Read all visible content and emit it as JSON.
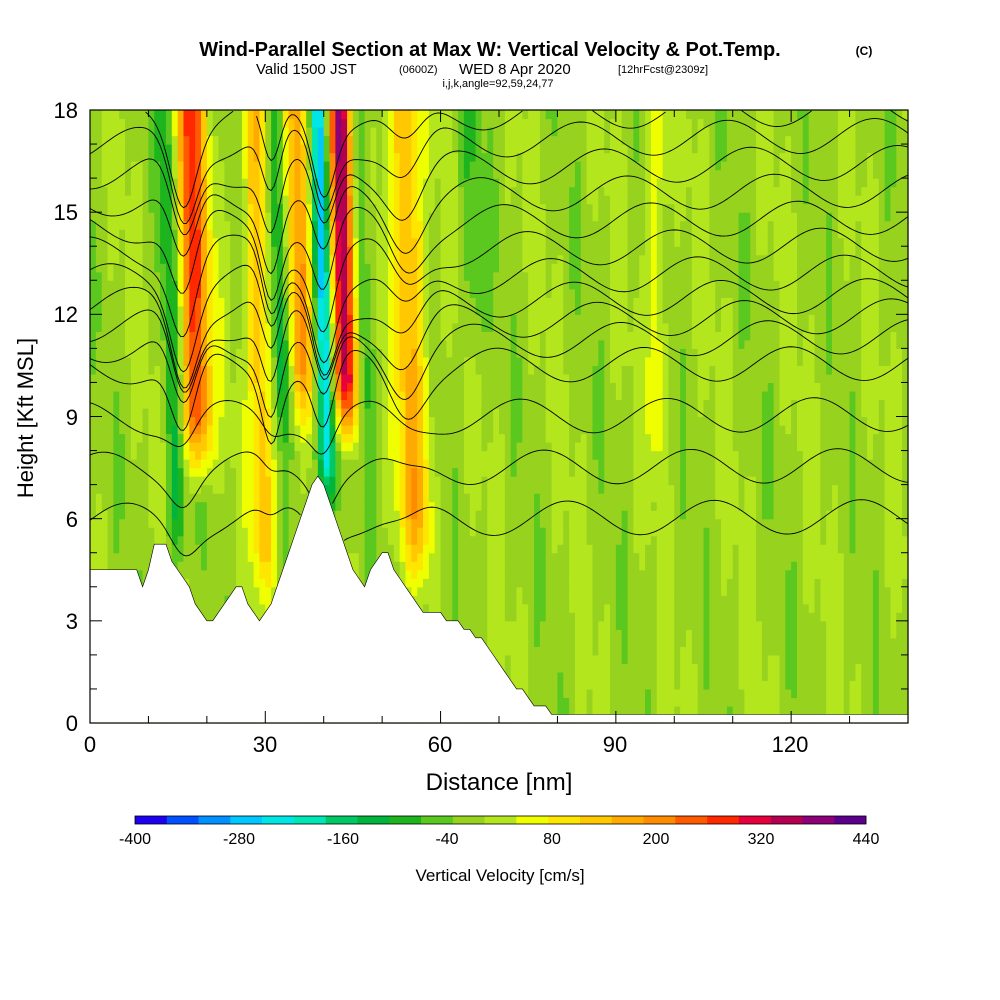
{
  "chart_data": {
    "type": "heatmap",
    "title": {
      "main": "Wind-Parallel Section at Max W: Vertical Velocity & Pot.Temp.",
      "copyright": "(C)",
      "valid_prefix": "Valid 1500 JST",
      "valid_utc": "(0600Z)",
      "valid_date": "WED 8 Apr 2020",
      "forecast": "[12hrFcst@2309z]",
      "indices": "i,j,k,angle=92,59,24,77"
    },
    "xlabel": "Distance [nm]",
    "ylabel": "Height [Kft MSL]",
    "xlim": [
      0,
      140
    ],
    "ylim": [
      0,
      18
    ],
    "x_ticks": [
      "0",
      "30",
      "60",
      "90",
      "120"
    ],
    "y_ticks": [
      "0",
      "3",
      "6",
      "9",
      "12",
      "15",
      "18"
    ],
    "colorbar": {
      "label": "Vertical Velocity [cm/s]",
      "min": -400,
      "max": 440,
      "step": 40,
      "tick_labels": [
        "-400",
        "-280",
        "-160",
        "-40",
        "80",
        "200",
        "320",
        "440"
      ],
      "colors": [
        "#1e00f0",
        "#0050ff",
        "#0090ff",
        "#00c8ff",
        "#00e6e6",
        "#00e6b4",
        "#00c864",
        "#00b43c",
        "#1eb41e",
        "#5ac81e",
        "#96d21e",
        "#b4e61e",
        "#f0ff00",
        "#ffe600",
        "#ffc800",
        "#ffaa00",
        "#ff8c00",
        "#ff5a00",
        "#ff2800",
        "#e6003c",
        "#b40050",
        "#8c0078",
        "#5a008c"
      ]
    },
    "terrain_height_kft": [
      [
        0,
        4.5
      ],
      [
        5,
        4.5
      ],
      [
        8,
        4.5
      ],
      [
        9,
        4.0
      ],
      [
        10,
        4.5
      ],
      [
        11,
        5.2
      ],
      [
        13,
        5.2
      ],
      [
        14,
        4.8
      ],
      [
        15,
        4.5
      ],
      [
        16,
        4.3
      ],
      [
        17,
        4.0
      ],
      [
        18,
        3.5
      ],
      [
        19,
        3.2
      ],
      [
        20,
        3.0
      ],
      [
        21,
        3.0
      ],
      [
        22,
        3.3
      ],
      [
        23,
        3.6
      ],
      [
        24,
        3.8
      ],
      [
        25,
        3.9
      ],
      [
        26,
        3.9
      ],
      [
        27,
        3.5
      ],
      [
        28,
        3.2
      ],
      [
        29,
        3.0
      ],
      [
        30,
        3.2
      ],
      [
        31,
        3.6
      ],
      [
        32,
        4.0
      ],
      [
        33,
        4.5
      ],
      [
        34,
        5.0
      ],
      [
        35,
        5.5
      ],
      [
        36,
        6.0
      ],
      [
        37,
        6.5
      ],
      [
        38,
        7.0
      ],
      [
        39,
        7.2
      ],
      [
        40,
        7.0
      ],
      [
        41,
        6.5
      ],
      [
        42,
        6.0
      ],
      [
        43,
        5.4
      ],
      [
        44,
        5.0
      ],
      [
        45,
        4.5
      ],
      [
        46,
        4.2
      ],
      [
        47,
        4.0
      ],
      [
        48,
        4.4
      ],
      [
        49,
        4.8
      ],
      [
        50,
        5.1
      ],
      [
        51,
        5.0
      ],
      [
        52,
        4.6
      ],
      [
        53,
        4.3
      ],
      [
        54,
        4.1
      ],
      [
        55,
        3.8
      ],
      [
        56,
        3.5
      ],
      [
        57,
        3.3
      ],
      [
        58,
        3.2
      ],
      [
        60,
        3.2
      ],
      [
        62,
        3.0
      ],
      [
        64,
        2.8
      ],
      [
        66,
        2.6
      ],
      [
        68,
        2.3
      ],
      [
        70,
        1.8
      ],
      [
        72,
        1.3
      ],
      [
        74,
        0.9
      ],
      [
        76,
        0.6
      ],
      [
        78,
        0.4
      ],
      [
        80,
        0.3
      ],
      [
        82,
        0.3
      ],
      [
        140,
        0.3
      ]
    ],
    "updraft_cores": [
      {
        "x": 18.5,
        "y_bottom": 8.0,
        "width": 2.6,
        "tilt_per_kft": 0.25,
        "peak": 300
      },
      {
        "x": 44.0,
        "y_bottom": 9.0,
        "width": 2.2,
        "tilt_per_kft": 0.25,
        "peak": 420
      },
      {
        "x": 30.0,
        "y_bottom": 4.5,
        "width": 2.0,
        "tilt_per_kft": 0.25,
        "peak": 170
      },
      {
        "x": 56.0,
        "y_bottom": 5.0,
        "width": 2.8,
        "tilt_per_kft": 0.3,
        "peak": 180
      },
      {
        "x": 36.5,
        "y_bottom": 9.5,
        "width": 2.0,
        "tilt_per_kft": 0.25,
        "peak": 200
      },
      {
        "x": 97.0,
        "y_bottom": 8.0,
        "width": 1.5,
        "tilt_per_kft": 0.0,
        "peak": 90
      }
    ],
    "downdraft_cores": [
      {
        "x": 40.8,
        "y_bottom": 6.8,
        "width": 1.5,
        "tilt_per_kft": 0.25,
        "peak": -300
      },
      {
        "x": 15.0,
        "y_bottom": 5.0,
        "width": 1.6,
        "tilt_per_kft": 0.25,
        "peak": -120
      },
      {
        "x": 33.0,
        "y_bottom": 9.0,
        "width": 1.4,
        "tilt_per_kft": 0.25,
        "peak": -140
      },
      {
        "x": 47.0,
        "y_bottom": 9.0,
        "width": 1.6,
        "tilt_per_kft": 0.25,
        "peak": -120
      },
      {
        "x": 66.0,
        "y_bottom": 11.0,
        "width": 2.0,
        "tilt_per_kft": 0.3,
        "peak": -60
      }
    ],
    "potential_temperature_contours_kft": [
      6.0,
      7.5,
      9.0,
      10.5,
      11.2,
      11.8,
      12.4,
      13.1,
      13.9,
      14.7,
      15.5,
      16.3,
      17.1,
      17.9
    ]
  }
}
